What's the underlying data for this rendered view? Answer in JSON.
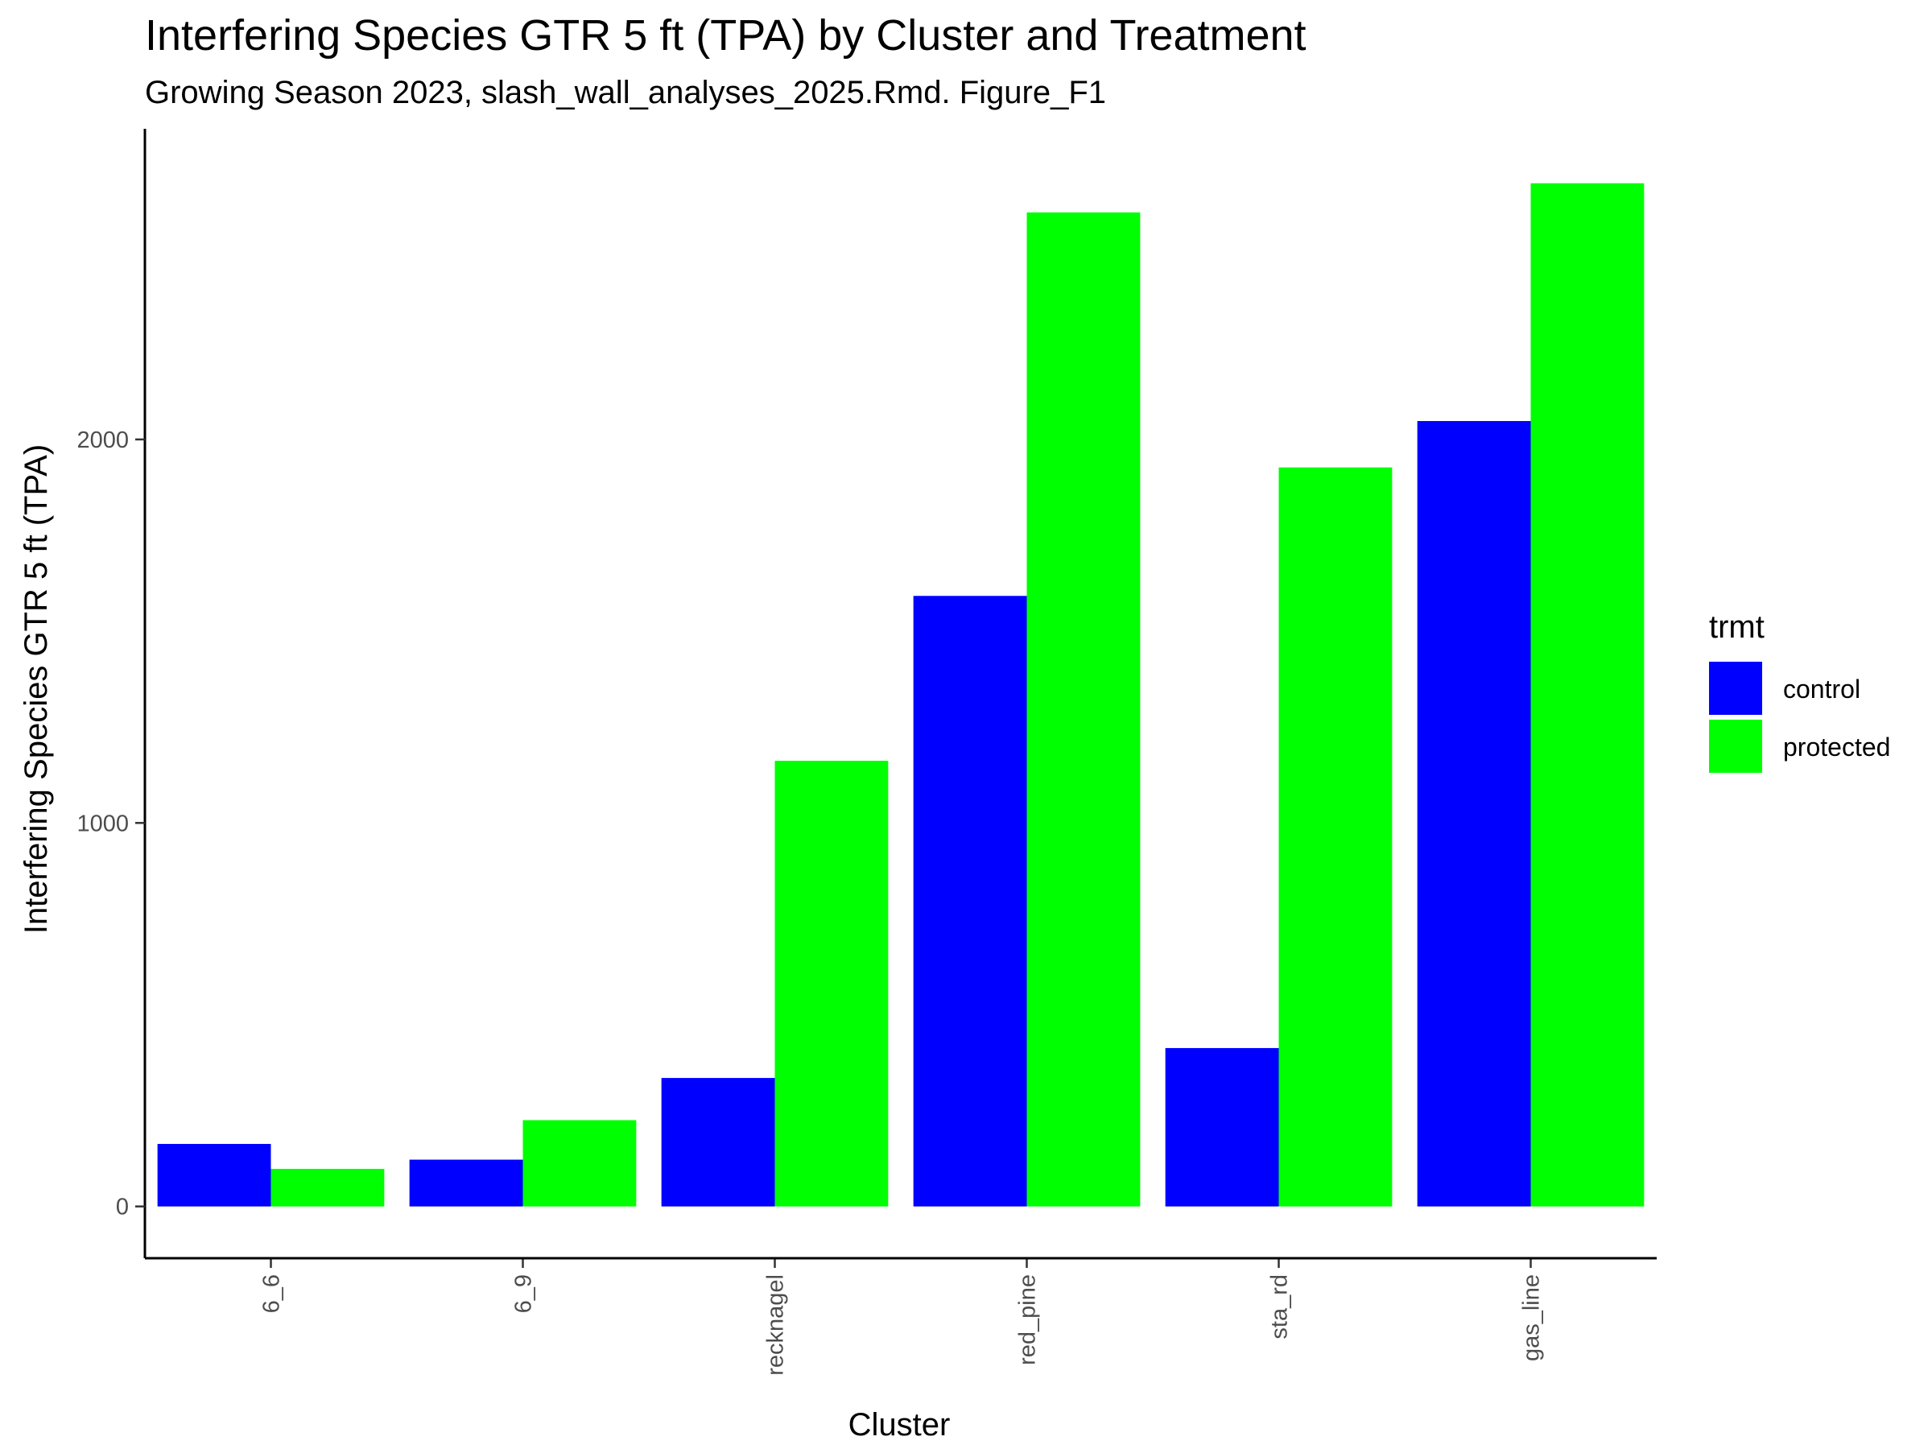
{
  "chart_data": {
    "type": "bar",
    "title": "Interfering Species GTR 5 ft (TPA) by Cluster and Treatment",
    "subtitle": "Growing Season 2023, slash_wall_analyses_2025.Rmd. Figure_F1",
    "xlabel": "Cluster",
    "ylabel": "Interfering Species GTR 5 ft (TPA)",
    "categories": [
      "6_6",
      "6_9",
      "recknagel",
      "red_pine",
      "sta_rd",
      "gas_line"
    ],
    "series": [
      {
        "name": "control",
        "color": "#0000ff",
        "values": [
          163,
          122,
          335,
          1592,
          413,
          2048
        ]
      },
      {
        "name": "protected",
        "color": "#00ff00",
        "values": [
          98,
          225,
          1162,
          2592,
          1927,
          2668
        ]
      }
    ],
    "yticks": [
      0,
      1000,
      2000
    ],
    "ylim": [
      -135,
      2810
    ],
    "legend": {
      "title": "trmt",
      "position": "right"
    },
    "grid": false
  }
}
